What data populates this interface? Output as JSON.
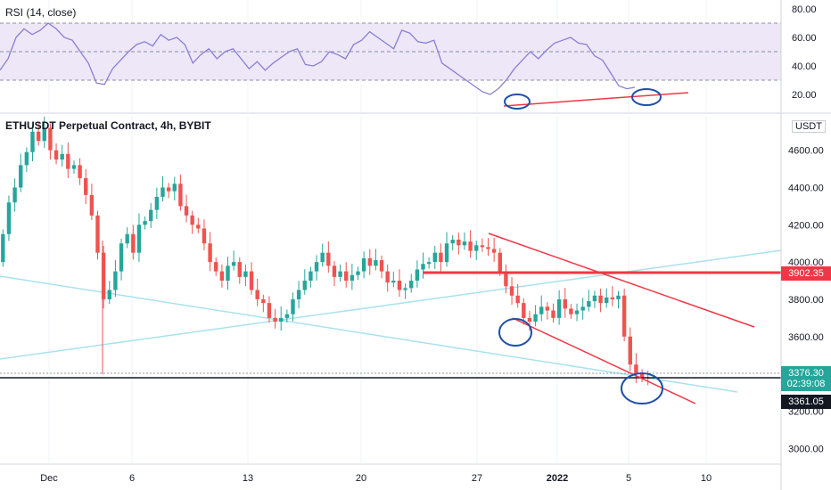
{
  "rsi": {
    "title": "RSI (14, close)",
    "axis_ticks": [
      "80.00",
      "60.00",
      "40.00",
      "20.00"
    ]
  },
  "main": {
    "title": "ETHUSDT Perpetual Contract, 4h, BYBIT",
    "currency": "USDT",
    "axis_ticks": [
      "4600.00",
      "4400.00",
      "4200.00",
      "4000.00",
      "3800.00",
      "3600.00",
      "3400.00",
      "3200.00",
      "3000.00"
    ]
  },
  "x_axis": {
    "ticks": [
      "Dec",
      "6",
      "13",
      "20",
      "27",
      "2022",
      "5",
      "10"
    ]
  },
  "price_tags": {
    "resistance": "3902.35",
    "last_price": "3376.30",
    "countdown": "02:39:08",
    "support": "3361.05"
  },
  "colors": {
    "up": "#26a69a",
    "down": "#ef5350",
    "trend_red": "#f23645",
    "cyan": "#a8e2ee",
    "rsi_line": "#8a7fd3",
    "rsi_band": "#ede7f7",
    "circle": "#1f4fa8"
  },
  "chart_data": [
    {
      "type": "line",
      "title": "RSI (14, close)",
      "ylim": [
        10,
        85
      ],
      "guide_levels": [
        70,
        50,
        30
      ],
      "series": [
        {
          "x_start": "2021-11-28",
          "x_end": "2022-01-06",
          "values": [
            37,
            45,
            60,
            66,
            62,
            65,
            70,
            66,
            60,
            58,
            50,
            42,
            28,
            27,
            38,
            44,
            50,
            55,
            57,
            54,
            62,
            58,
            60,
            55,
            42,
            48,
            52,
            45,
            50,
            52,
            45,
            38,
            43,
            37,
            42,
            46,
            50,
            52,
            41,
            40,
            43,
            50,
            48,
            45,
            55,
            58,
            64,
            60,
            56,
            52,
            65,
            63,
            57,
            56,
            58,
            42,
            38,
            34,
            30,
            26,
            22,
            20,
            24,
            30,
            38,
            44,
            50,
            45,
            51,
            56,
            58,
            60,
            56,
            55,
            47,
            44,
            35,
            26,
            24,
            25
          ]
        }
      ]
    },
    {
      "type": "candlestick",
      "title": "ETHUSDT Perpetual Contract, 4h, BYBIT",
      "x_ticks": [
        "Dec",
        "6",
        "13",
        "20",
        "27",
        "2022",
        "5",
        "10"
      ],
      "ylim": [
        2920,
        4780
      ],
      "y_unit": "USDT",
      "series": [
        {
          "closes": [
            4150,
            4320,
            4400,
            4520,
            4590,
            4700,
            4650,
            4720,
            4600,
            4550,
            4580,
            4500,
            4520,
            4450,
            4360,
            4250,
            4050,
            3800,
            3850,
            3950,
            4100,
            4150,
            4050,
            4200,
            4220,
            4280,
            4350,
            4400,
            4380,
            4420,
            4300,
            4250,
            4200,
            4180,
            4100,
            4000,
            3950,
            3900,
            3980,
            4000,
            3920,
            3950,
            3850,
            3800,
            3780,
            3700,
            3680,
            3700,
            3720,
            3800,
            3850,
            3900,
            3950,
            4000,
            4050,
            3980,
            3920,
            3950,
            3900,
            3930,
            3950,
            4020,
            3980,
            4010,
            3950,
            3890,
            3900,
            3850,
            3860,
            3900,
            3960,
            3990,
            4000,
            4050,
            4000,
            4100,
            4120,
            4090,
            4110,
            4060,
            4090,
            4080,
            4070,
            4050,
            3950,
            3870,
            3820,
            3780,
            3700,
            3680,
            3720,
            3760,
            3740,
            3700,
            3800,
            3750,
            3720,
            3740,
            3760,
            3790,
            3820,
            3780,
            3810,
            3800,
            3820,
            3600,
            3450,
            3400,
            3380,
            3376
          ]
        }
      ]
    }
  ]
}
